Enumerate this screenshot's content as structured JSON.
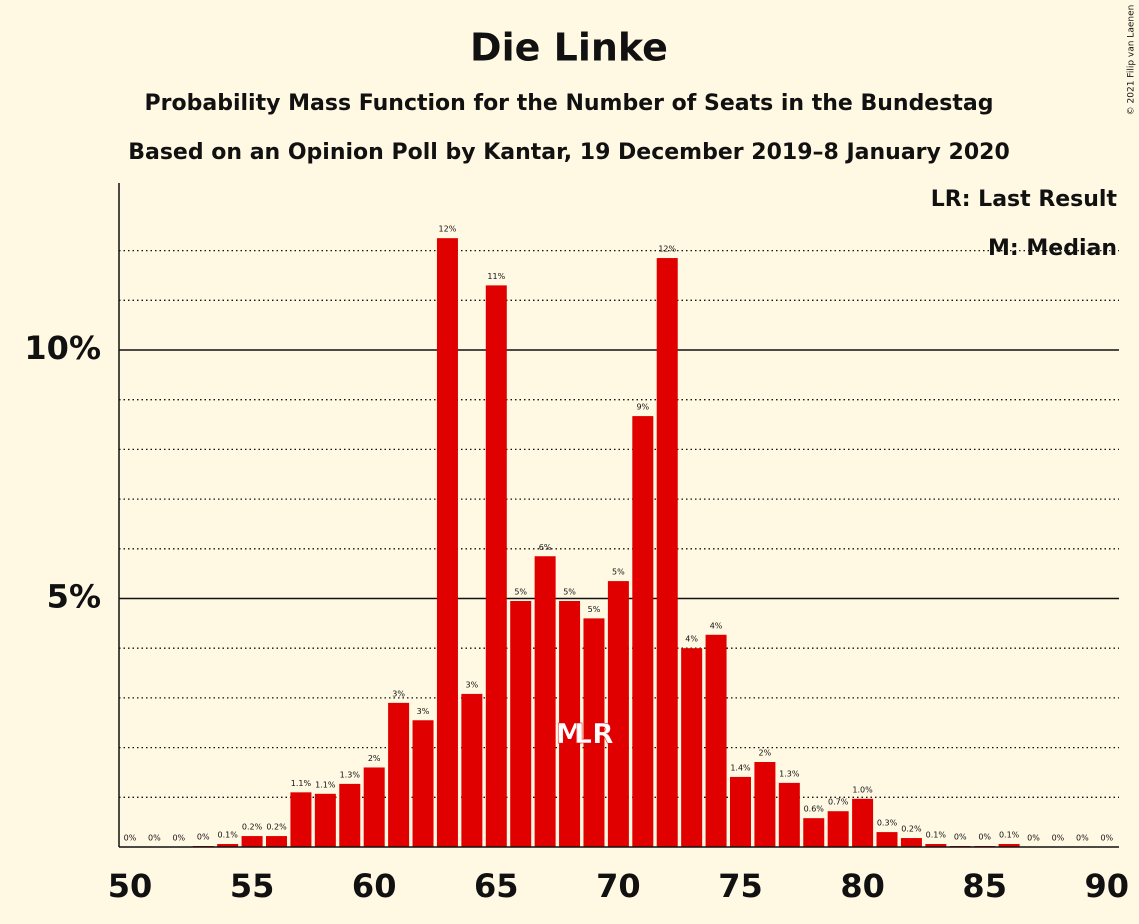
{
  "chart_data": {
    "type": "bar",
    "title": "Die Linke",
    "subtitle": "Probability Mass Function for the Number of Seats in the Bundestag",
    "subtitle2": "Based on an Opinion Poll by Kantar, 19 December 2019–8 January 2020",
    "copyright": "© 2021 Filip van Laenen",
    "legend": [
      "LR: Last Result",
      "M: Median"
    ],
    "legend_position": "upper right",
    "color": "#e00000",
    "x": [
      50,
      51,
      52,
      53,
      54,
      55,
      56,
      57,
      58,
      59,
      60,
      61,
      62,
      63,
      64,
      65,
      66,
      67,
      68,
      69,
      70,
      71,
      72,
      73,
      74,
      75,
      76,
      77,
      78,
      79,
      80,
      81,
      82,
      83,
      84,
      85,
      86,
      87,
      88,
      89,
      90
    ],
    "values": [
      0,
      0,
      0,
      0.02,
      0.06,
      0.22,
      0.22,
      1.1,
      1.07,
      1.27,
      1.6,
      2.9,
      2.55,
      12.25,
      3.08,
      11.3,
      4.95,
      5.85,
      4.95,
      4.6,
      5.35,
      8.67,
      11.85,
      4.0,
      4.27,
      1.41,
      1.71,
      1.29,
      0.58,
      0.72,
      0.97,
      0.3,
      0.18,
      0.06,
      0.02,
      0.02,
      0.06,
      0,
      0,
      0,
      0
    ],
    "value_labels": [
      "0%",
      "0%",
      "0%",
      "0%",
      "0.1%",
      "0.2%",
      "0.2%",
      "1.1%",
      "1.1%",
      "1.3%",
      "2%",
      "3%",
      "3%",
      "12%",
      "3%",
      "11%",
      "5%",
      "6%",
      "5%",
      "5%",
      "5%",
      "9%",
      "12%",
      "4%",
      "4%",
      "1.4%",
      "2%",
      "1.3%",
      "0.6%",
      "0.7%",
      "1.0%",
      "0.3%",
      "0.2%",
      "0.1%",
      "0%",
      "0%",
      "0.1%",
      "0%",
      "0%",
      "0%",
      "0%"
    ],
    "markers": [
      {
        "label": "M",
        "x": 68
      },
      {
        "label": "LR",
        "x": 69
      }
    ],
    "xlim": [
      49.55,
      90.5
    ],
    "xticks": [
      50,
      55,
      60,
      65,
      70,
      75,
      80,
      85,
      90
    ],
    "ylim": [
      0,
      13.36
    ],
    "yticks": [
      {
        "value": 5,
        "label": "5%"
      },
      {
        "value": 10,
        "label": "10%"
      }
    ],
    "minor_yticks": [
      1,
      2,
      3,
      4,
      6,
      7,
      8,
      9,
      11,
      12
    ],
    "grid": true
  }
}
